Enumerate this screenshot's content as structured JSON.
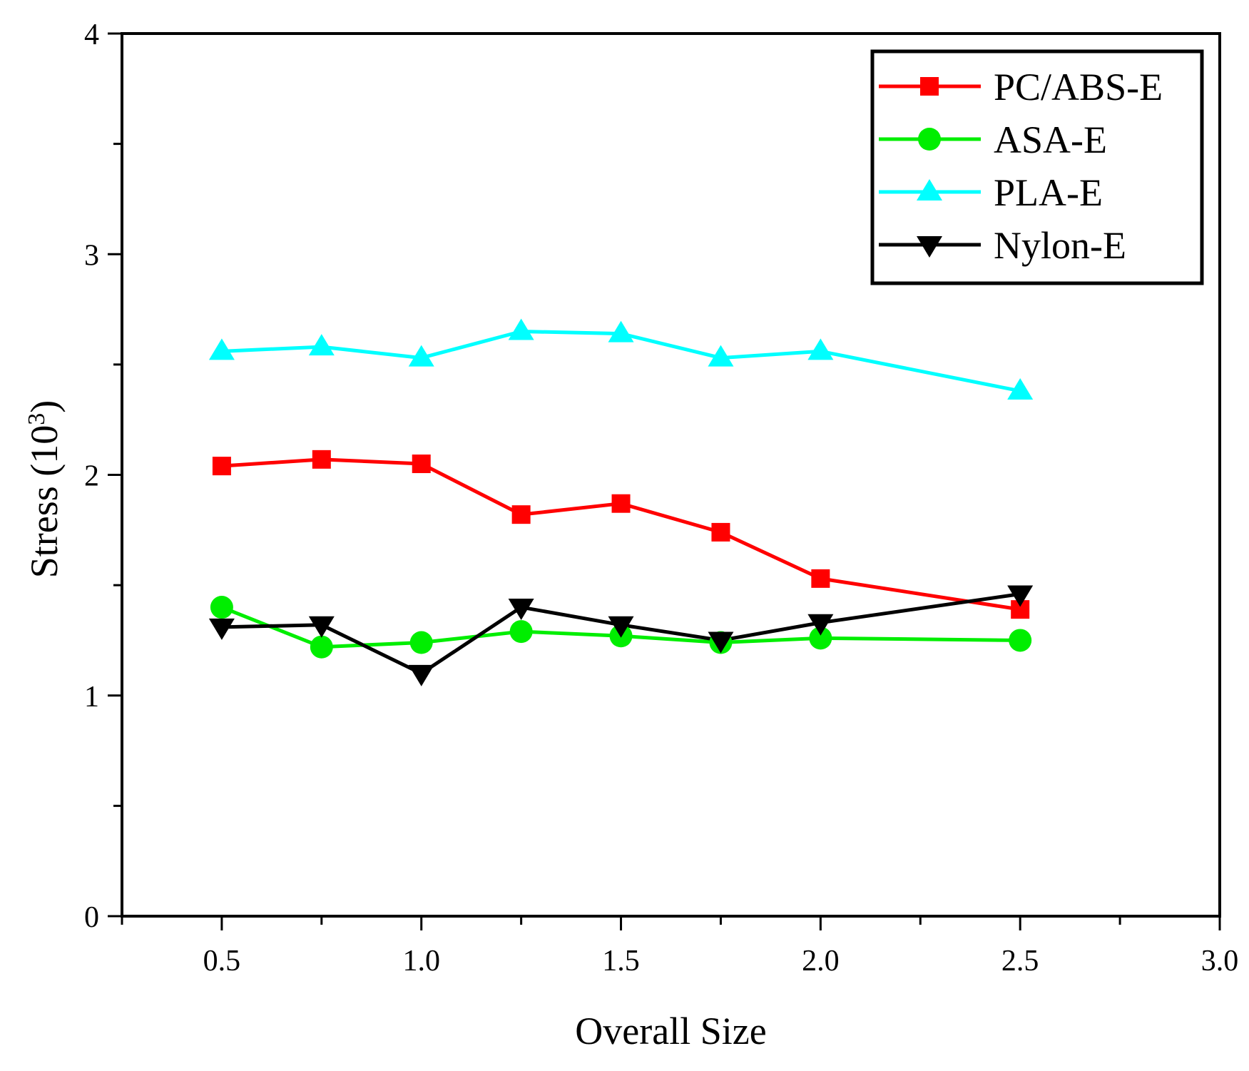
{
  "chart_data": {
    "type": "line",
    "title": "",
    "xlabel": "Overall Size",
    "ylabel": "Stress (10",
    "ylabel_superscript": "3",
    "ylabel_suffix": ")",
    "xlim": [
      0.25,
      3.0
    ],
    "ylim": [
      0,
      4
    ],
    "x_ticks": [
      0.5,
      1.0,
      1.5,
      2.0,
      2.5,
      3.0
    ],
    "x_tick_labels": [
      "0.5",
      "1.0",
      "1.5",
      "2.0",
      "2.5",
      "3.0"
    ],
    "x_minor_step": 0.25,
    "y_ticks": [
      0,
      1,
      2,
      3,
      4
    ],
    "y_tick_labels": [
      "0",
      "1",
      "2",
      "3",
      "4"
    ],
    "y_minor_step": 0.5,
    "grid": false,
    "legend_position": "top-right",
    "x": [
      0.5,
      0.75,
      1.0,
      1.25,
      1.5,
      1.75,
      2.0,
      2.5
    ],
    "series": [
      {
        "name": "PC/ABS-E",
        "color": "#ff0000",
        "marker": "square",
        "values": [
          2.04,
          2.07,
          2.05,
          1.82,
          1.87,
          1.74,
          1.53,
          1.39
        ]
      },
      {
        "name": "ASA-E",
        "color": "#00ee00",
        "marker": "circle",
        "values": [
          1.4,
          1.22,
          1.24,
          1.29,
          1.27,
          1.24,
          1.26,
          1.25
        ]
      },
      {
        "name": "PLA-E",
        "color": "#00ffff",
        "marker": "triangle-up",
        "values": [
          2.56,
          2.58,
          2.53,
          2.65,
          2.64,
          2.53,
          2.56,
          2.38
        ]
      },
      {
        "name": "Nylon-E",
        "color": "#000000",
        "marker": "triangle-down",
        "values": [
          1.31,
          1.32,
          1.1,
          1.4,
          1.32,
          1.25,
          1.33,
          1.46
        ]
      }
    ]
  }
}
